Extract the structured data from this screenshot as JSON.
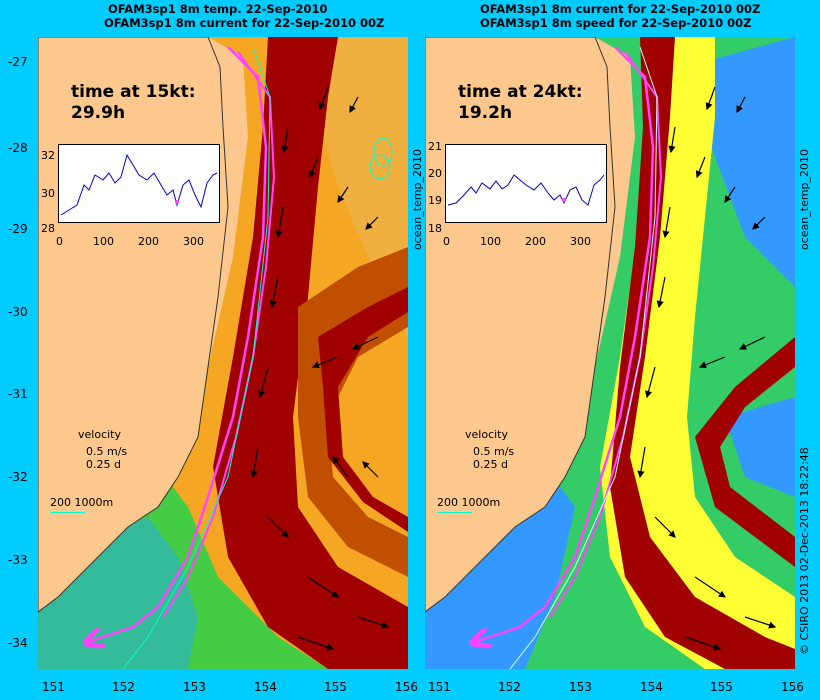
{
  "left_panel": {
    "title_line1": "OFAM3sp1 8m temp. 22-Sep-2010",
    "title_line2": "OFAM3sp1 8m current for 22-Sep-2010 00Z",
    "time_label": "time at 15kt:",
    "time_value": "29.9h",
    "inset": {
      "yticks": [
        "32",
        "30",
        "28"
      ],
      "xticks": [
        "0",
        "100",
        "200",
        "300"
      ]
    },
    "side_label": "ocean_temp_2010"
  },
  "right_panel": {
    "title_line1": "OFAM3sp1 8m current for 22-Sep-2010 00Z",
    "title_line2": "OFAM3sp1 8m speed for 22-Sep-2010 00Z",
    "time_label": "time at 24kt:",
    "time_value": "19.2h",
    "inset": {
      "yticks": [
        "21",
        "20",
        "19",
        "18"
      ],
      "xticks": [
        "0",
        "100",
        "200",
        "300"
      ]
    },
    "side_label": "ocean_temp_2010"
  },
  "legend": {
    "velocity": "velocity",
    "speed": "0.5 m/s",
    "duration": "0.25 d",
    "depth": "200  1000m"
  },
  "axes": {
    "lat_ticks": [
      "-27",
      "-28",
      "-29",
      "-30",
      "-31",
      "-32",
      "-33",
      "-34"
    ],
    "lon_ticks": [
      "151",
      "152",
      "153",
      "154",
      "155",
      "156"
    ]
  },
  "credit": "© CSIRO 2013   02-Dec-2013 18:22:48",
  "colors": {
    "background": "#00ccff",
    "land": "#fcc88d",
    "current_core": "#a00000",
    "route": "#ff44ff"
  }
}
